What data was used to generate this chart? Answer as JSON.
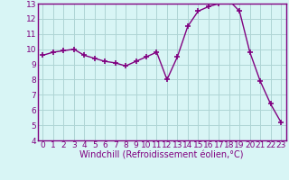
{
  "x": [
    0,
    1,
    2,
    3,
    4,
    5,
    6,
    7,
    8,
    9,
    10,
    11,
    12,
    13,
    14,
    15,
    16,
    17,
    18,
    19,
    20,
    21,
    22,
    23
  ],
  "y": [
    9.6,
    9.8,
    9.9,
    10.0,
    9.6,
    9.4,
    9.2,
    9.1,
    8.9,
    9.2,
    9.5,
    9.8,
    8.0,
    9.5,
    11.5,
    12.5,
    12.8,
    13.0,
    13.2,
    12.5,
    9.8,
    7.9,
    6.4,
    5.2
  ],
  "line_color": "#800080",
  "marker": "+",
  "bg_color": "#d8f5f5",
  "grid_color": "#aed4d4",
  "xlabel": "Windchill (Refroidissement éolien,°C)",
  "ylim": [
    4,
    13
  ],
  "xlim": [
    -0.5,
    23.5
  ],
  "yticks": [
    4,
    5,
    6,
    7,
    8,
    9,
    10,
    11,
    12,
    13
  ],
  "xticks": [
    0,
    1,
    2,
    3,
    4,
    5,
    6,
    7,
    8,
    9,
    10,
    11,
    12,
    13,
    14,
    15,
    16,
    17,
    18,
    19,
    20,
    21,
    22,
    23
  ],
  "axis_label_color": "#800080",
  "tick_color": "#800080",
  "xlabel_fontsize": 7.0,
  "tick_fontsize": 6.5,
  "linewidth": 1.0,
  "markersize": 4,
  "markeredgewidth": 1.2
}
